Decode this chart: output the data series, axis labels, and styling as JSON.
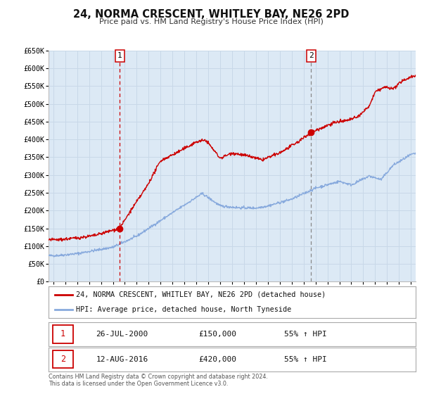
{
  "title": "24, NORMA CRESCENT, WHITLEY BAY, NE26 2PD",
  "subtitle": "Price paid vs. HM Land Registry's House Price Index (HPI)",
  "bg_color": "#dce9f5",
  "outer_bg_color": "#ffffff",
  "red_line_color": "#cc0000",
  "blue_line_color": "#88aadd",
  "grid_color": "#c8d8e8",
  "vline1_color": "#cc0000",
  "vline2_color": "#888888",
  "marker_color": "#cc0000",
  "ylim": [
    0,
    650000
  ],
  "yticks": [
    0,
    50000,
    100000,
    150000,
    200000,
    250000,
    300000,
    350000,
    400000,
    450000,
    500000,
    550000,
    600000,
    650000
  ],
  "ytick_labels": [
    "£0",
    "£50K",
    "£100K",
    "£150K",
    "£200K",
    "£250K",
    "£300K",
    "£350K",
    "£400K",
    "£450K",
    "£500K",
    "£550K",
    "£600K",
    "£650K"
  ],
  "xlim_start": 1994.6,
  "xlim_end": 2025.4,
  "xtick_years": [
    1995,
    1996,
    1997,
    1998,
    1999,
    2000,
    2001,
    2002,
    2003,
    2004,
    2005,
    2006,
    2007,
    2008,
    2009,
    2010,
    2011,
    2012,
    2013,
    2014,
    2015,
    2016,
    2017,
    2018,
    2019,
    2020,
    2021,
    2022,
    2023,
    2024,
    2025
  ],
  "sale1_x": 2000.57,
  "sale1_y": 150000,
  "sale1_label": "1",
  "sale1_date": "26-JUL-2000",
  "sale1_price": "£150,000",
  "sale1_hpi": "55% ↑ HPI",
  "sale2_x": 2016.62,
  "sale2_y": 420000,
  "sale2_label": "2",
  "sale2_date": "12-AUG-2016",
  "sale2_price": "£420,000",
  "sale2_hpi": "55% ↑ HPI",
  "legend_label_red": "24, NORMA CRESCENT, WHITLEY BAY, NE26 2PD (detached house)",
  "legend_label_blue": "HPI: Average price, detached house, North Tyneside",
  "footer": "Contains HM Land Registry data © Crown copyright and database right 2024.\nThis data is licensed under the Open Government Licence v3.0."
}
